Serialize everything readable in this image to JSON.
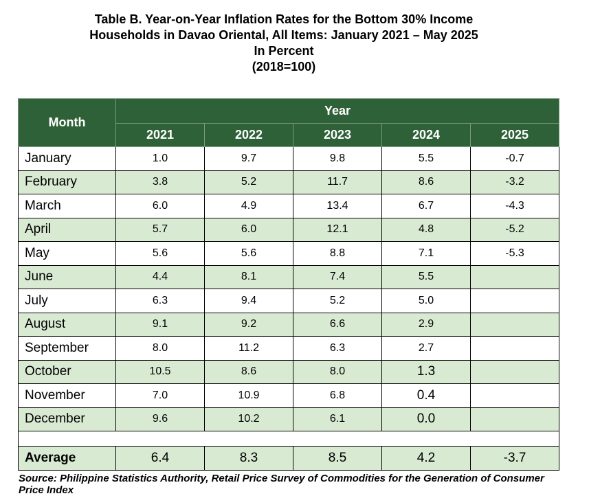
{
  "title": {
    "line1": "Table B. Year-on-Year Inflation Rates for the Bottom 30% Income",
    "line2": "Households in Davao Oriental, All Items: January 2021 – May 2025",
    "line3": "In Percent",
    "line4": "(2018=100)"
  },
  "table": {
    "header_month": "Month",
    "header_year": "Year",
    "years": [
      "2021",
      "2022",
      "2023",
      "2024",
      "2025"
    ],
    "rows": [
      {
        "month": "January",
        "values": [
          "1.0",
          "9.7",
          "9.8",
          "5.5",
          "-0.7"
        ]
      },
      {
        "month": "February",
        "values": [
          "3.8",
          "5.2",
          "11.7",
          "8.6",
          "-3.2"
        ]
      },
      {
        "month": "March",
        "values": [
          "6.0",
          "4.9",
          "13.4",
          "6.7",
          "-4.3"
        ]
      },
      {
        "month": "April",
        "values": [
          "5.7",
          "6.0",
          "12.1",
          "4.8",
          "-5.2"
        ]
      },
      {
        "month": "May",
        "values": [
          "5.6",
          "5.6",
          "8.8",
          "7.1",
          "-5.3"
        ]
      },
      {
        "month": "June",
        "values": [
          "4.4",
          "8.1",
          "7.4",
          "5.5",
          ""
        ]
      },
      {
        "month": "July",
        "values": [
          "6.3",
          "9.4",
          "5.2",
          "5.0",
          ""
        ]
      },
      {
        "month": "August",
        "values": [
          "9.1",
          "9.2",
          "6.6",
          "2.9",
          ""
        ]
      },
      {
        "month": "September",
        "values": [
          "8.0",
          "11.2",
          "6.3",
          "2.7",
          ""
        ]
      },
      {
        "month": "October",
        "values": [
          "10.5",
          "8.6",
          "8.0",
          "1.3",
          ""
        ]
      },
      {
        "month": "November",
        "values": [
          "7.0",
          "10.9",
          "6.8",
          "0.4",
          ""
        ]
      },
      {
        "month": "December",
        "values": [
          "9.6",
          "10.2",
          "6.1",
          "0.0",
          ""
        ]
      }
    ],
    "average": {
      "label": "Average",
      "values": [
        "6.4",
        "8.3",
        "8.5",
        "4.2",
        "-3.7"
      ]
    }
  },
  "source": "Source: Philippine Statistics Authority, Retail Price Survey of Commodities for the Generation of Consumer Price Index",
  "colors": {
    "header_bg": "#2e6137",
    "row_shade": "#d9ead3"
  }
}
